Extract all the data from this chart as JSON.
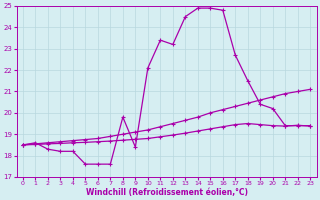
{
  "xlabel": "Windchill (Refroidissement éolien,°C)",
  "background_color": "#d6eef2",
  "grid_color": "#b8d8df",
  "line_color": "#aa00aa",
  "xlim": [
    -0.5,
    23.5
  ],
  "ylim": [
    17,
    25
  ],
  "yticks": [
    17,
    18,
    19,
    20,
    21,
    22,
    23,
    24,
    25
  ],
  "xticks": [
    0,
    1,
    2,
    3,
    4,
    5,
    6,
    7,
    8,
    9,
    10,
    11,
    12,
    13,
    14,
    15,
    16,
    17,
    18,
    19,
    20,
    21,
    22,
    23
  ],
  "series1_x": [
    0,
    1,
    2,
    3,
    4,
    5,
    6,
    7,
    8,
    9,
    10,
    11,
    12,
    13,
    14,
    15,
    16,
    17,
    18,
    19,
    20,
    21,
    22,
    23
  ],
  "series1_y": [
    18.5,
    18.6,
    18.3,
    18.2,
    18.2,
    17.6,
    17.6,
    17.6,
    19.8,
    18.4,
    22.1,
    23.4,
    23.2,
    24.5,
    24.9,
    24.9,
    24.8,
    22.7,
    21.5,
    20.4,
    20.2,
    19.4,
    19.4,
    19.4
  ],
  "series2_x": [
    0,
    1,
    2,
    3,
    4,
    5,
    6,
    7,
    8,
    9,
    10,
    11,
    12,
    13,
    14,
    15,
    16,
    17,
    18,
    19,
    20,
    21,
    22,
    23
  ],
  "series2_y": [
    18.5,
    18.55,
    18.6,
    18.65,
    18.7,
    18.75,
    18.8,
    18.9,
    19.0,
    19.1,
    19.2,
    19.35,
    19.5,
    19.65,
    19.8,
    20.0,
    20.15,
    20.3,
    20.45,
    20.6,
    20.75,
    20.9,
    21.0,
    21.1
  ],
  "series3_x": [
    0,
    1,
    2,
    3,
    4,
    5,
    6,
    7,
    8,
    9,
    10,
    11,
    12,
    13,
    14,
    15,
    16,
    17,
    18,
    19,
    20,
    21,
    22,
    23
  ],
  "series3_y": [
    18.5,
    18.52,
    18.55,
    18.57,
    18.6,
    18.62,
    18.65,
    18.68,
    18.72,
    18.76,
    18.8,
    18.88,
    18.96,
    19.05,
    19.15,
    19.25,
    19.35,
    19.45,
    19.5,
    19.45,
    19.4,
    19.38,
    19.42,
    19.38
  ]
}
